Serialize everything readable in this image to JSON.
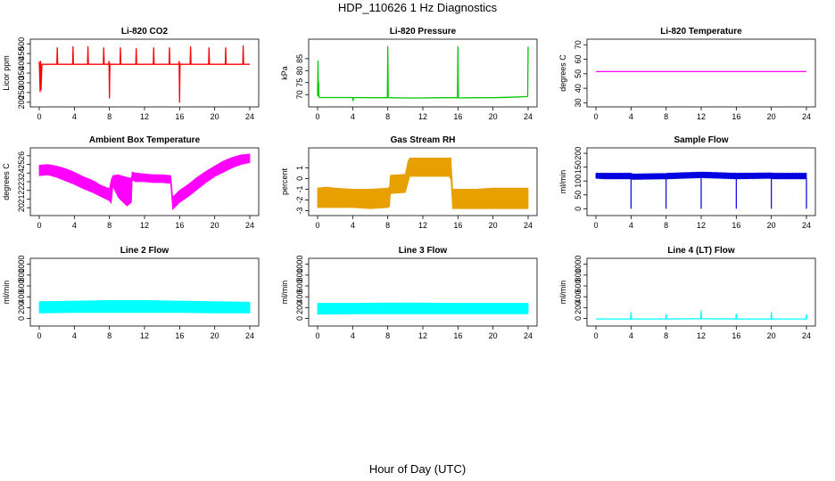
{
  "figure": {
    "title": "HDP_110626  1 Hz Diagnostics",
    "xlabel": "Hour of Day (UTC)"
  },
  "chart_data": [
    {
      "type": "line",
      "title": "Li-820 CO2",
      "ylabel": "Licor ppm",
      "color": "#ff0000",
      "xlim": [
        0,
        24
      ],
      "xticks": [
        0,
        4,
        8,
        12,
        16,
        20,
        24
      ],
      "ylim": [
        190,
        510
      ],
      "yticks": [
        200,
        250,
        300,
        350,
        400,
        450,
        500
      ],
      "series": [
        {
          "name": "Li-820 CO2",
          "x": [
            0,
            0.1,
            0.15,
            0.2,
            0.3,
            1,
            2,
            2.05,
            2.1,
            3,
            3.8,
            3.85,
            3.9,
            4.8,
            5.5,
            5.55,
            5.6,
            6.5,
            7.3,
            7.35,
            7.4,
            7.9,
            7.95,
            8,
            8.05,
            8.1,
            9.2,
            9.25,
            9.3,
            10.3,
            11,
            11.05,
            11.1,
            12,
            13,
            13.05,
            13.1,
            14.2,
            14.8,
            14.85,
            14.9,
            15.9,
            15.95,
            16,
            16.05,
            16.1,
            17.2,
            17.25,
            17.3,
            18.2,
            19.3,
            19.35,
            19.4,
            20.5,
            21.2,
            21.25,
            21.3,
            22.4,
            23.2,
            23.25,
            23.3,
            23.9,
            24
          ],
          "values": [
            410,
            255,
            410,
            265,
            395,
            395,
            395,
            480,
            395,
            395,
            395,
            485,
            395,
            395,
            395,
            485,
            395,
            395,
            395,
            480,
            395,
            395,
            410,
            222,
            398,
            395,
            395,
            480,
            395,
            395,
            395,
            475,
            395,
            395,
            395,
            480,
            395,
            395,
            395,
            480,
            395,
            395,
            410,
            200,
            398,
            395,
            395,
            485,
            395,
            395,
            395,
            480,
            395,
            395,
            395,
            480,
            395,
            395,
            395,
            490,
            395,
            395,
            395
          ]
        }
      ]
    },
    {
      "type": "line",
      "title": "Li-820 Pressure",
      "ylabel": "kPa",
      "color": "#00c800",
      "xlim": [
        0,
        24
      ],
      "xticks": [
        0,
        4,
        8,
        12,
        16,
        20,
        24
      ],
      "ylim": [
        66,
        92
      ],
      "yticks": [
        70,
        75,
        80,
        85
      ],
      "series": [
        {
          "name": "Li-820 Pressure",
          "x": [
            0,
            0.05,
            0.08,
            0.12,
            0.15,
            0.3,
            2,
            4,
            4.05,
            4.1,
            6,
            7.95,
            8,
            8.05,
            8.1,
            10,
            12,
            14,
            15.95,
            16,
            16.05,
            16.1,
            18,
            20,
            22,
            23.95,
            24
          ],
          "values": [
            69.5,
            84,
            69.5,
            75,
            69,
            68.8,
            68.8,
            68.8,
            67.5,
            68.8,
            68.7,
            68.7,
            90,
            68.7,
            68.7,
            68.6,
            68.6,
            68.7,
            68.7,
            90,
            68.7,
            68.6,
            68.7,
            68.7,
            68.9,
            69.2,
            90
          ]
        }
      ]
    },
    {
      "type": "line",
      "title": "Li-820 Temperature",
      "ylabel": "degrees C",
      "color": "#ff00ff",
      "xlim": [
        0,
        24
      ],
      "xticks": [
        0,
        4,
        8,
        12,
        16,
        20,
        24
      ],
      "ylim": [
        29,
        72
      ],
      "yticks": [
        30,
        40,
        50,
        60,
        70
      ],
      "series": [
        {
          "name": "Li-820 Temperature",
          "x": [
            0,
            24
          ],
          "values": [
            51.5,
            51.5
          ]
        }
      ]
    },
    {
      "type": "area",
      "title": "Ambient Box Temperature",
      "ylabel": "degrees C",
      "color": "#ff00ff",
      "xlim": [
        0,
        24
      ],
      "xticks": [
        0,
        4,
        8,
        12,
        16,
        20,
        24
      ],
      "ylim": [
        19.4,
        26.6
      ],
      "yticks": [
        20,
        21,
        22,
        23,
        24,
        25,
        26
      ],
      "series": [
        {
          "name": "upper",
          "x": [
            0,
            1,
            2,
            3,
            4,
            5,
            6,
            7,
            8,
            8.2,
            8.4,
            9,
            10,
            10.5,
            10.6,
            11,
            12,
            13,
            14,
            15,
            15.2,
            16,
            17,
            18,
            19,
            20,
            21,
            22,
            23,
            24
          ],
          "values": [
            24.9,
            25,
            24.8,
            24.5,
            24.1,
            23.6,
            23.2,
            22.6,
            22.2,
            23.2,
            23.7,
            23.8,
            23.5,
            23.4,
            24.1,
            24,
            23.9,
            23.8,
            23.8,
            23.7,
            21.2,
            22,
            22.7,
            23.5,
            24.2,
            24.8,
            25.4,
            25.8,
            26.1,
            26.2
          ]
        },
        {
          "name": "lower",
          "x": [
            0,
            1,
            2,
            3,
            4,
            5,
            6,
            7,
            8,
            8.2,
            8.4,
            9,
            10,
            10.5,
            10.6,
            11,
            12,
            13,
            14,
            15,
            15.2,
            16,
            17,
            18,
            19,
            20,
            21,
            22,
            23,
            24
          ],
          "values": [
            23.7,
            23.8,
            23.5,
            23.1,
            22.7,
            22.2,
            21.8,
            21.3,
            20.8,
            20.5,
            22.5,
            21.2,
            20.2,
            20.6,
            23.2,
            23,
            23,
            22.9,
            22.9,
            22.8,
            19.8,
            20.6,
            21.3,
            22.1,
            22.9,
            23.6,
            24.1,
            24.6,
            25,
            25.2
          ]
        }
      ]
    },
    {
      "type": "area",
      "title": "Gas Stream RH",
      "ylabel": "percent",
      "color": "#e8a000",
      "xlim": [
        0,
        24
      ],
      "xticks": [
        0,
        4,
        8,
        12,
        16,
        20,
        24
      ],
      "ylim": [
        -3.2,
        2.6
      ],
      "yticks": [
        -3,
        -2,
        -1,
        0,
        1
      ],
      "series": [
        {
          "name": "upper",
          "x": [
            0,
            1,
            2,
            4,
            6,
            8,
            8.2,
            8.3,
            10,
            10.3,
            10.5,
            12,
            15,
            15.2,
            15.4,
            18,
            20,
            22,
            24
          ],
          "values": [
            -0.9,
            -0.8,
            -0.9,
            -1.0,
            -1.0,
            -0.9,
            -0.8,
            0.3,
            0.4,
            1.6,
            1.9,
            1.9,
            1.9,
            1.9,
            -1.0,
            -1.0,
            -0.9,
            -0.9,
            -0.9
          ]
        },
        {
          "name": "lower",
          "x": [
            0,
            1,
            2,
            4,
            6,
            8,
            8.2,
            8.3,
            10,
            10.3,
            10.5,
            12,
            15,
            15.2,
            15.4,
            18,
            20,
            22,
            24
          ],
          "values": [
            -2.7,
            -2.7,
            -2.7,
            -2.7,
            -2.8,
            -2.7,
            -2.6,
            -1.4,
            -1.3,
            -0.4,
            0.2,
            0.2,
            0.2,
            -0.1,
            -2.8,
            -2.8,
            -2.8,
            -2.8,
            -2.8
          ]
        }
      ]
    },
    {
      "type": "area",
      "title": "Sample Flow",
      "ylabel": "ml/min",
      "color": "#0000e0",
      "xlim": [
        0,
        24
      ],
      "xticks": [
        0,
        4,
        8,
        12,
        16,
        20,
        24
      ],
      "ylim": [
        -15,
        210
      ],
      "yticks": [
        0,
        50,
        100,
        150,
        200
      ],
      "dips": [
        4,
        8,
        12,
        16,
        20,
        24
      ],
      "series": [
        {
          "name": "upper",
          "x": [
            0,
            1,
            4,
            4.2,
            8,
            8.2,
            12,
            12.2,
            16,
            16.2,
            20,
            20.2,
            24
          ],
          "values": [
            128,
            128,
            128,
            125,
            127,
            128,
            132,
            132,
            128,
            128,
            129,
            128,
            128
          ]
        },
        {
          "name": "lower",
          "x": [
            0,
            1,
            4,
            4.2,
            8,
            8.2,
            12,
            12.2,
            16,
            16.2,
            20,
            20.2,
            24
          ],
          "values": [
            110,
            108,
            108,
            106,
            108,
            108,
            112,
            112,
            108,
            108,
            110,
            108,
            108
          ]
        }
      ]
    },
    {
      "type": "area",
      "title": "Line 2 Flow",
      "ylabel": "ml/min",
      "color": "#00ffff",
      "xlim": [
        0,
        24
      ],
      "xticks": [
        0,
        4,
        8,
        12,
        16,
        20,
        24
      ],
      "ylim": [
        -90,
        1060
      ],
      "yticks": [
        0,
        200,
        400,
        600,
        800,
        1000
      ],
      "series": [
        {
          "name": "upper",
          "x": [
            0,
            4,
            8,
            12,
            16,
            20,
            24
          ],
          "values": [
            310,
            320,
            330,
            330,
            320,
            310,
            300
          ]
        },
        {
          "name": "lower",
          "x": [
            0,
            4,
            8,
            12,
            16,
            20,
            24
          ],
          "values": [
            100,
            110,
            110,
            110,
            110,
            100,
            100
          ]
        }
      ]
    },
    {
      "type": "area",
      "title": "Line 3 Flow",
      "ylabel": "ml/min",
      "color": "#00ffff",
      "xlim": [
        0,
        24
      ],
      "xticks": [
        0,
        4,
        8,
        12,
        16,
        20,
        24
      ],
      "ylim": [
        -90,
        1060
      ],
      "yticks": [
        0,
        200,
        400,
        600,
        800,
        1000
      ],
      "series": [
        {
          "name": "upper",
          "x": [
            0,
            4,
            8,
            12,
            16,
            20,
            24
          ],
          "values": [
            280,
            280,
            285,
            285,
            280,
            280,
            280
          ]
        },
        {
          "name": "lower",
          "x": [
            0,
            4,
            8,
            12,
            16,
            20,
            24
          ],
          "values": [
            80,
            85,
            85,
            85,
            85,
            85,
            85
          ]
        }
      ]
    },
    {
      "type": "line",
      "title": "Line 4 (LT) Flow",
      "ylabel": "ml/min",
      "color": "#00ffff",
      "xlim": [
        0,
        24
      ],
      "xticks": [
        0,
        4,
        8,
        12,
        16,
        20,
        24
      ],
      "ylim": [
        -90,
        1060
      ],
      "yticks": [
        0,
        200,
        400,
        600,
        800,
        1000
      ],
      "series": [
        {
          "name": "Line 4 (LT) Flow",
          "x": [
            0,
            3.95,
            4,
            4.05,
            7.95,
            8,
            8.05,
            11.95,
            12,
            12.05,
            15.95,
            16,
            16.05,
            19.95,
            20,
            20.05,
            23.95,
            24,
            24.05
          ],
          "values": [
            -10,
            -10,
            110,
            -10,
            -10,
            70,
            -10,
            -5,
            140,
            -5,
            -10,
            80,
            -10,
            -10,
            110,
            -10,
            -10,
            70,
            -10
          ]
        }
      ]
    }
  ]
}
